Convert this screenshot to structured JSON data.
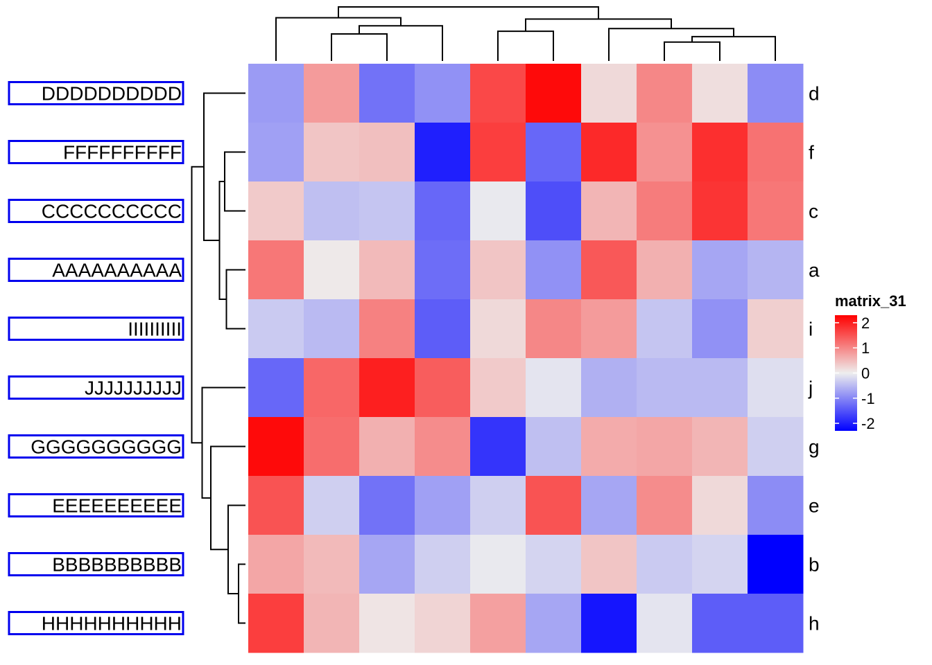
{
  "chart_data": {
    "type": "heatmap",
    "title": "",
    "xlabel": "",
    "ylabel": "",
    "rows": [
      "d",
      "f",
      "c",
      "a",
      "i",
      "j",
      "g",
      "e",
      "b",
      "h"
    ],
    "row_annotations": [
      "DDDDDDDDDD",
      "FFFFFFFFFF",
      "CCCCCCCCCC",
      "AAAAAAAAAA",
      "IIIIIIIIII",
      "JJJJJJJJJJ",
      "GGGGGGGGGG",
      "EEEEEEEEEE",
      "BBBBBBBBBB",
      "HHHHHHHHHH"
    ],
    "columns": 10,
    "values": [
      [
        -0.8,
        0.8,
        -1.2,
        -0.9,
        1.6,
        2.2,
        0.2,
        1.0,
        0.15,
        -0.95
      ],
      [
        -0.75,
        0.4,
        0.45,
        -2.0,
        1.7,
        -1.3,
        1.9,
        0.9,
        1.85,
        1.2
      ],
      [
        0.35,
        -0.45,
        -0.4,
        -1.3,
        -0.05,
        -1.55,
        0.55,
        1.1,
        1.8,
        1.15
      ],
      [
        1.15,
        0.05,
        0.5,
        -1.25,
        0.4,
        -0.9,
        1.45,
        0.6,
        -0.7,
        -0.55
      ],
      [
        -0.35,
        -0.5,
        1.05,
        -1.4,
        0.2,
        1.0,
        0.8,
        -0.4,
        -0.9,
        0.3
      ],
      [
        -1.3,
        1.3,
        2.0,
        1.4,
        0.35,
        -0.1,
        -0.6,
        -0.5,
        -0.5,
        -0.15
      ],
      [
        2.2,
        1.25,
        0.6,
        0.95,
        -1.8,
        -0.45,
        0.65,
        0.7,
        0.55,
        -0.3
      ],
      [
        1.5,
        -0.3,
        -1.2,
        -0.75,
        -0.3,
        1.5,
        -0.7,
        0.95,
        0.2,
        -0.95
      ],
      [
        0.7,
        0.5,
        -0.7,
        -0.3,
        -0.05,
        -0.25,
        0.4,
        -0.35,
        -0.25,
        -2.3
      ],
      [
        1.7,
        0.55,
        0.1,
        0.25,
        0.75,
        -0.7,
        -2.1,
        -0.1,
        -1.4,
        -1.4
      ]
    ],
    "color_scale": {
      "low": "#0000ff",
      "mid": "#eeeeee",
      "high": "#ff0000",
      "domain": [
        -2.3,
        0,
        2.3
      ]
    },
    "legend": {
      "title": "matrix_31",
      "ticks": [
        "2",
        "1",
        "0",
        "-1",
        "-2"
      ],
      "tick_values": [
        2,
        1,
        0,
        -1,
        -2
      ],
      "position": "right"
    },
    "row_dendrogram": true,
    "column_dendrogram": true
  }
}
